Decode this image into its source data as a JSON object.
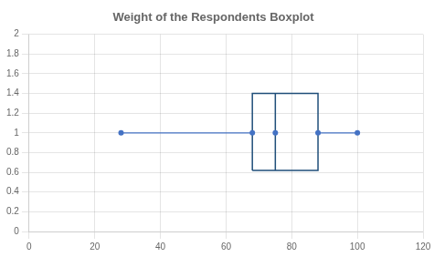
{
  "chart_data": {
    "type": "box",
    "orientation": "horizontal",
    "title": "Weight of the Respondents Boxplot",
    "y": 1.0,
    "series": [
      {
        "type": "box",
        "color": "#1F4E79",
        "values": [
          68,
          75,
          88
        ],
        "box_bottom": 0.62,
        "box_top": 1.4
      },
      {
        "type": "whisker",
        "color": "#4472C4",
        "marker": "circle",
        "values": [
          28,
          100
        ]
      }
    ],
    "xlim": [
      0,
      120
    ],
    "xticks": [
      0,
      20,
      40,
      60,
      80,
      100,
      120
    ],
    "ylim": [
      0,
      2
    ],
    "yticks": [
      0,
      0.2,
      0.4,
      0.6,
      0.8,
      1.0,
      1.2,
      1.4,
      1.6,
      1.8,
      2.0
    ],
    "grid": true
  }
}
